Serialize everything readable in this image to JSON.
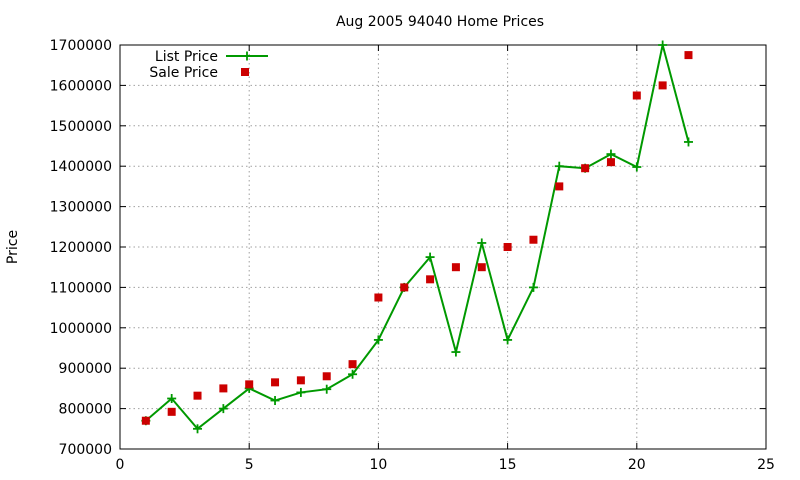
{
  "chart_data": {
    "type": "line",
    "title": "Aug 2005 94040 Home Prices",
    "xlabel": "",
    "ylabel": "Price",
    "xlim": [
      0,
      25
    ],
    "ylim": [
      700000,
      1700000
    ],
    "x_ticks": [
      0,
      5,
      10,
      15,
      20,
      25
    ],
    "y_ticks": [
      700000,
      800000,
      900000,
      1000000,
      1100000,
      1200000,
      1300000,
      1400000,
      1500000,
      1600000,
      1700000
    ],
    "grid": true,
    "legend_position": "top-left",
    "series": [
      {
        "name": "List Price",
        "style": "lines+points",
        "color": "#009900",
        "marker": "plus",
        "x": [
          1,
          2,
          3,
          4,
          5,
          6,
          7,
          8,
          9,
          10,
          11,
          12,
          13,
          14,
          15,
          16,
          17,
          18,
          19,
          20,
          21,
          22
        ],
        "y": [
          770000,
          825000,
          750000,
          800000,
          850000,
          820000,
          840000,
          848000,
          885000,
          970000,
          1100000,
          1175000,
          940000,
          1210000,
          970000,
          1100000,
          1400000,
          1395000,
          1430000,
          1398000,
          1700000,
          1460000
        ]
      },
      {
        "name": "Sale Price",
        "style": "points",
        "color": "#cc0000",
        "marker": "square",
        "x": [
          1,
          2,
          3,
          4,
          5,
          6,
          7,
          8,
          9,
          10,
          11,
          12,
          13,
          14,
          15,
          16,
          17,
          18,
          19,
          20,
          21,
          22
        ],
        "y": [
          770000,
          792000,
          832000,
          850000,
          860000,
          865000,
          870000,
          880000,
          910000,
          1075000,
          1100000,
          1120000,
          1150000,
          1150000,
          1200000,
          1218000,
          1350000,
          1395000,
          1410000,
          1575000,
          1600000,
          1675000
        ]
      }
    ]
  }
}
